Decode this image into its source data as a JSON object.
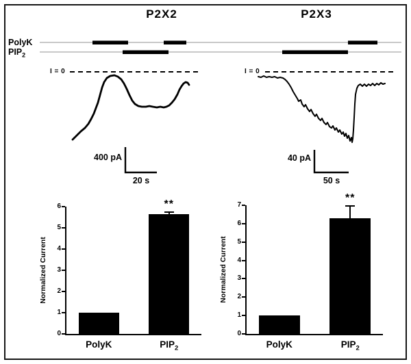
{
  "figure": {
    "panels": [
      {
        "title": "P2X2"
      },
      {
        "title": "P2X3"
      }
    ],
    "application_rows": [
      {
        "label": "PolyK",
        "sub": ""
      },
      {
        "label": "PIP",
        "sub": "2"
      }
    ],
    "zero_current_label": "I = 0",
    "scale_bars": [
      {
        "amplitude": "400 pA",
        "duration": "20 s"
      },
      {
        "amplitude": "40 pA",
        "duration": "50 s"
      }
    ]
  },
  "chart_data": [
    {
      "type": "bar",
      "panel": "P2X2",
      "categories": [
        {
          "label": "PolyK",
          "sub": ""
        },
        {
          "label": "PIP",
          "sub": "2"
        }
      ],
      "values": [
        1.0,
        5.65
      ],
      "errors": [
        0.05,
        0.1
      ],
      "ylabel": "Normalized Current",
      "ylim": [
        0,
        6
      ],
      "yticks": [
        0,
        1,
        2,
        3,
        4,
        5,
        6
      ],
      "significance": {
        "index": 1,
        "label": "**"
      },
      "legend": "none",
      "grid": false
    },
    {
      "type": "bar",
      "panel": "P2X3",
      "categories": [
        {
          "label": "PolyK",
          "sub": ""
        },
        {
          "label": "PIP",
          "sub": "2"
        }
      ],
      "values": [
        1.0,
        6.3
      ],
      "errors": [
        0.05,
        0.65
      ],
      "ylabel": "Normalized Current",
      "ylim": [
        0,
        7
      ],
      "yticks": [
        0,
        1,
        2,
        3,
        4,
        5,
        6,
        7
      ],
      "significance": {
        "index": 1,
        "label": "**"
      },
      "legend": "none",
      "grid": false
    }
  ]
}
